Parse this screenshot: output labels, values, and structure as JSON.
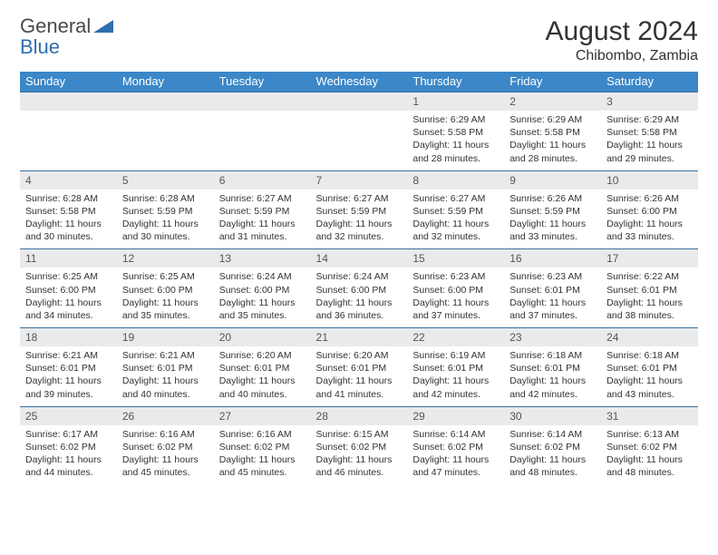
{
  "brand": {
    "text_general": "General",
    "text_blue": "Blue",
    "triangle_color": "#2f6fb0",
    "text_color_gray": "#4a4a4a"
  },
  "header": {
    "month_title": "August 2024",
    "location": "Chibombo, Zambia"
  },
  "colors": {
    "header_bg": "#3b87c8",
    "header_text": "#ffffff",
    "daynum_bg": "#e9eaeb",
    "daynum_text": "#555555",
    "body_text": "#333333",
    "row_divider": "#3b6fa0"
  },
  "typography": {
    "title_fontsize": 30,
    "location_fontsize": 16,
    "dayname_fontsize": 13,
    "daynum_fontsize": 12,
    "cell_fontsize": 10.5
  },
  "calendar": {
    "type": "table",
    "day_names": [
      "Sunday",
      "Monday",
      "Tuesday",
      "Wednesday",
      "Thursday",
      "Friday",
      "Saturday"
    ],
    "weeks": [
      {
        "nums": [
          "",
          "",
          "",
          "",
          "1",
          "2",
          "3"
        ],
        "cells": [
          null,
          null,
          null,
          null,
          {
            "sunrise": "Sunrise: 6:29 AM",
            "sunset": "Sunset: 5:58 PM",
            "day1": "Daylight: 11 hours",
            "day2": "and 28 minutes."
          },
          {
            "sunrise": "Sunrise: 6:29 AM",
            "sunset": "Sunset: 5:58 PM",
            "day1": "Daylight: 11 hours",
            "day2": "and 28 minutes."
          },
          {
            "sunrise": "Sunrise: 6:29 AM",
            "sunset": "Sunset: 5:58 PM",
            "day1": "Daylight: 11 hours",
            "day2": "and 29 minutes."
          }
        ]
      },
      {
        "nums": [
          "4",
          "5",
          "6",
          "7",
          "8",
          "9",
          "10"
        ],
        "cells": [
          {
            "sunrise": "Sunrise: 6:28 AM",
            "sunset": "Sunset: 5:58 PM",
            "day1": "Daylight: 11 hours",
            "day2": "and 30 minutes."
          },
          {
            "sunrise": "Sunrise: 6:28 AM",
            "sunset": "Sunset: 5:59 PM",
            "day1": "Daylight: 11 hours",
            "day2": "and 30 minutes."
          },
          {
            "sunrise": "Sunrise: 6:27 AM",
            "sunset": "Sunset: 5:59 PM",
            "day1": "Daylight: 11 hours",
            "day2": "and 31 minutes."
          },
          {
            "sunrise": "Sunrise: 6:27 AM",
            "sunset": "Sunset: 5:59 PM",
            "day1": "Daylight: 11 hours",
            "day2": "and 32 minutes."
          },
          {
            "sunrise": "Sunrise: 6:27 AM",
            "sunset": "Sunset: 5:59 PM",
            "day1": "Daylight: 11 hours",
            "day2": "and 32 minutes."
          },
          {
            "sunrise": "Sunrise: 6:26 AM",
            "sunset": "Sunset: 5:59 PM",
            "day1": "Daylight: 11 hours",
            "day2": "and 33 minutes."
          },
          {
            "sunrise": "Sunrise: 6:26 AM",
            "sunset": "Sunset: 6:00 PM",
            "day1": "Daylight: 11 hours",
            "day2": "and 33 minutes."
          }
        ]
      },
      {
        "nums": [
          "11",
          "12",
          "13",
          "14",
          "15",
          "16",
          "17"
        ],
        "cells": [
          {
            "sunrise": "Sunrise: 6:25 AM",
            "sunset": "Sunset: 6:00 PM",
            "day1": "Daylight: 11 hours",
            "day2": "and 34 minutes."
          },
          {
            "sunrise": "Sunrise: 6:25 AM",
            "sunset": "Sunset: 6:00 PM",
            "day1": "Daylight: 11 hours",
            "day2": "and 35 minutes."
          },
          {
            "sunrise": "Sunrise: 6:24 AM",
            "sunset": "Sunset: 6:00 PM",
            "day1": "Daylight: 11 hours",
            "day2": "and 35 minutes."
          },
          {
            "sunrise": "Sunrise: 6:24 AM",
            "sunset": "Sunset: 6:00 PM",
            "day1": "Daylight: 11 hours",
            "day2": "and 36 minutes."
          },
          {
            "sunrise": "Sunrise: 6:23 AM",
            "sunset": "Sunset: 6:00 PM",
            "day1": "Daylight: 11 hours",
            "day2": "and 37 minutes."
          },
          {
            "sunrise": "Sunrise: 6:23 AM",
            "sunset": "Sunset: 6:01 PM",
            "day1": "Daylight: 11 hours",
            "day2": "and 37 minutes."
          },
          {
            "sunrise": "Sunrise: 6:22 AM",
            "sunset": "Sunset: 6:01 PM",
            "day1": "Daylight: 11 hours",
            "day2": "and 38 minutes."
          }
        ]
      },
      {
        "nums": [
          "18",
          "19",
          "20",
          "21",
          "22",
          "23",
          "24"
        ],
        "cells": [
          {
            "sunrise": "Sunrise: 6:21 AM",
            "sunset": "Sunset: 6:01 PM",
            "day1": "Daylight: 11 hours",
            "day2": "and 39 minutes."
          },
          {
            "sunrise": "Sunrise: 6:21 AM",
            "sunset": "Sunset: 6:01 PM",
            "day1": "Daylight: 11 hours",
            "day2": "and 40 minutes."
          },
          {
            "sunrise": "Sunrise: 6:20 AM",
            "sunset": "Sunset: 6:01 PM",
            "day1": "Daylight: 11 hours",
            "day2": "and 40 minutes."
          },
          {
            "sunrise": "Sunrise: 6:20 AM",
            "sunset": "Sunset: 6:01 PM",
            "day1": "Daylight: 11 hours",
            "day2": "and 41 minutes."
          },
          {
            "sunrise": "Sunrise: 6:19 AM",
            "sunset": "Sunset: 6:01 PM",
            "day1": "Daylight: 11 hours",
            "day2": "and 42 minutes."
          },
          {
            "sunrise": "Sunrise: 6:18 AM",
            "sunset": "Sunset: 6:01 PM",
            "day1": "Daylight: 11 hours",
            "day2": "and 42 minutes."
          },
          {
            "sunrise": "Sunrise: 6:18 AM",
            "sunset": "Sunset: 6:01 PM",
            "day1": "Daylight: 11 hours",
            "day2": "and 43 minutes."
          }
        ]
      },
      {
        "nums": [
          "25",
          "26",
          "27",
          "28",
          "29",
          "30",
          "31"
        ],
        "cells": [
          {
            "sunrise": "Sunrise: 6:17 AM",
            "sunset": "Sunset: 6:02 PM",
            "day1": "Daylight: 11 hours",
            "day2": "and 44 minutes."
          },
          {
            "sunrise": "Sunrise: 6:16 AM",
            "sunset": "Sunset: 6:02 PM",
            "day1": "Daylight: 11 hours",
            "day2": "and 45 minutes."
          },
          {
            "sunrise": "Sunrise: 6:16 AM",
            "sunset": "Sunset: 6:02 PM",
            "day1": "Daylight: 11 hours",
            "day2": "and 45 minutes."
          },
          {
            "sunrise": "Sunrise: 6:15 AM",
            "sunset": "Sunset: 6:02 PM",
            "day1": "Daylight: 11 hours",
            "day2": "and 46 minutes."
          },
          {
            "sunrise": "Sunrise: 6:14 AM",
            "sunset": "Sunset: 6:02 PM",
            "day1": "Daylight: 11 hours",
            "day2": "and 47 minutes."
          },
          {
            "sunrise": "Sunrise: 6:14 AM",
            "sunset": "Sunset: 6:02 PM",
            "day1": "Daylight: 11 hours",
            "day2": "and 48 minutes."
          },
          {
            "sunrise": "Sunrise: 6:13 AM",
            "sunset": "Sunset: 6:02 PM",
            "day1": "Daylight: 11 hours",
            "day2": "and 48 minutes."
          }
        ]
      }
    ]
  }
}
